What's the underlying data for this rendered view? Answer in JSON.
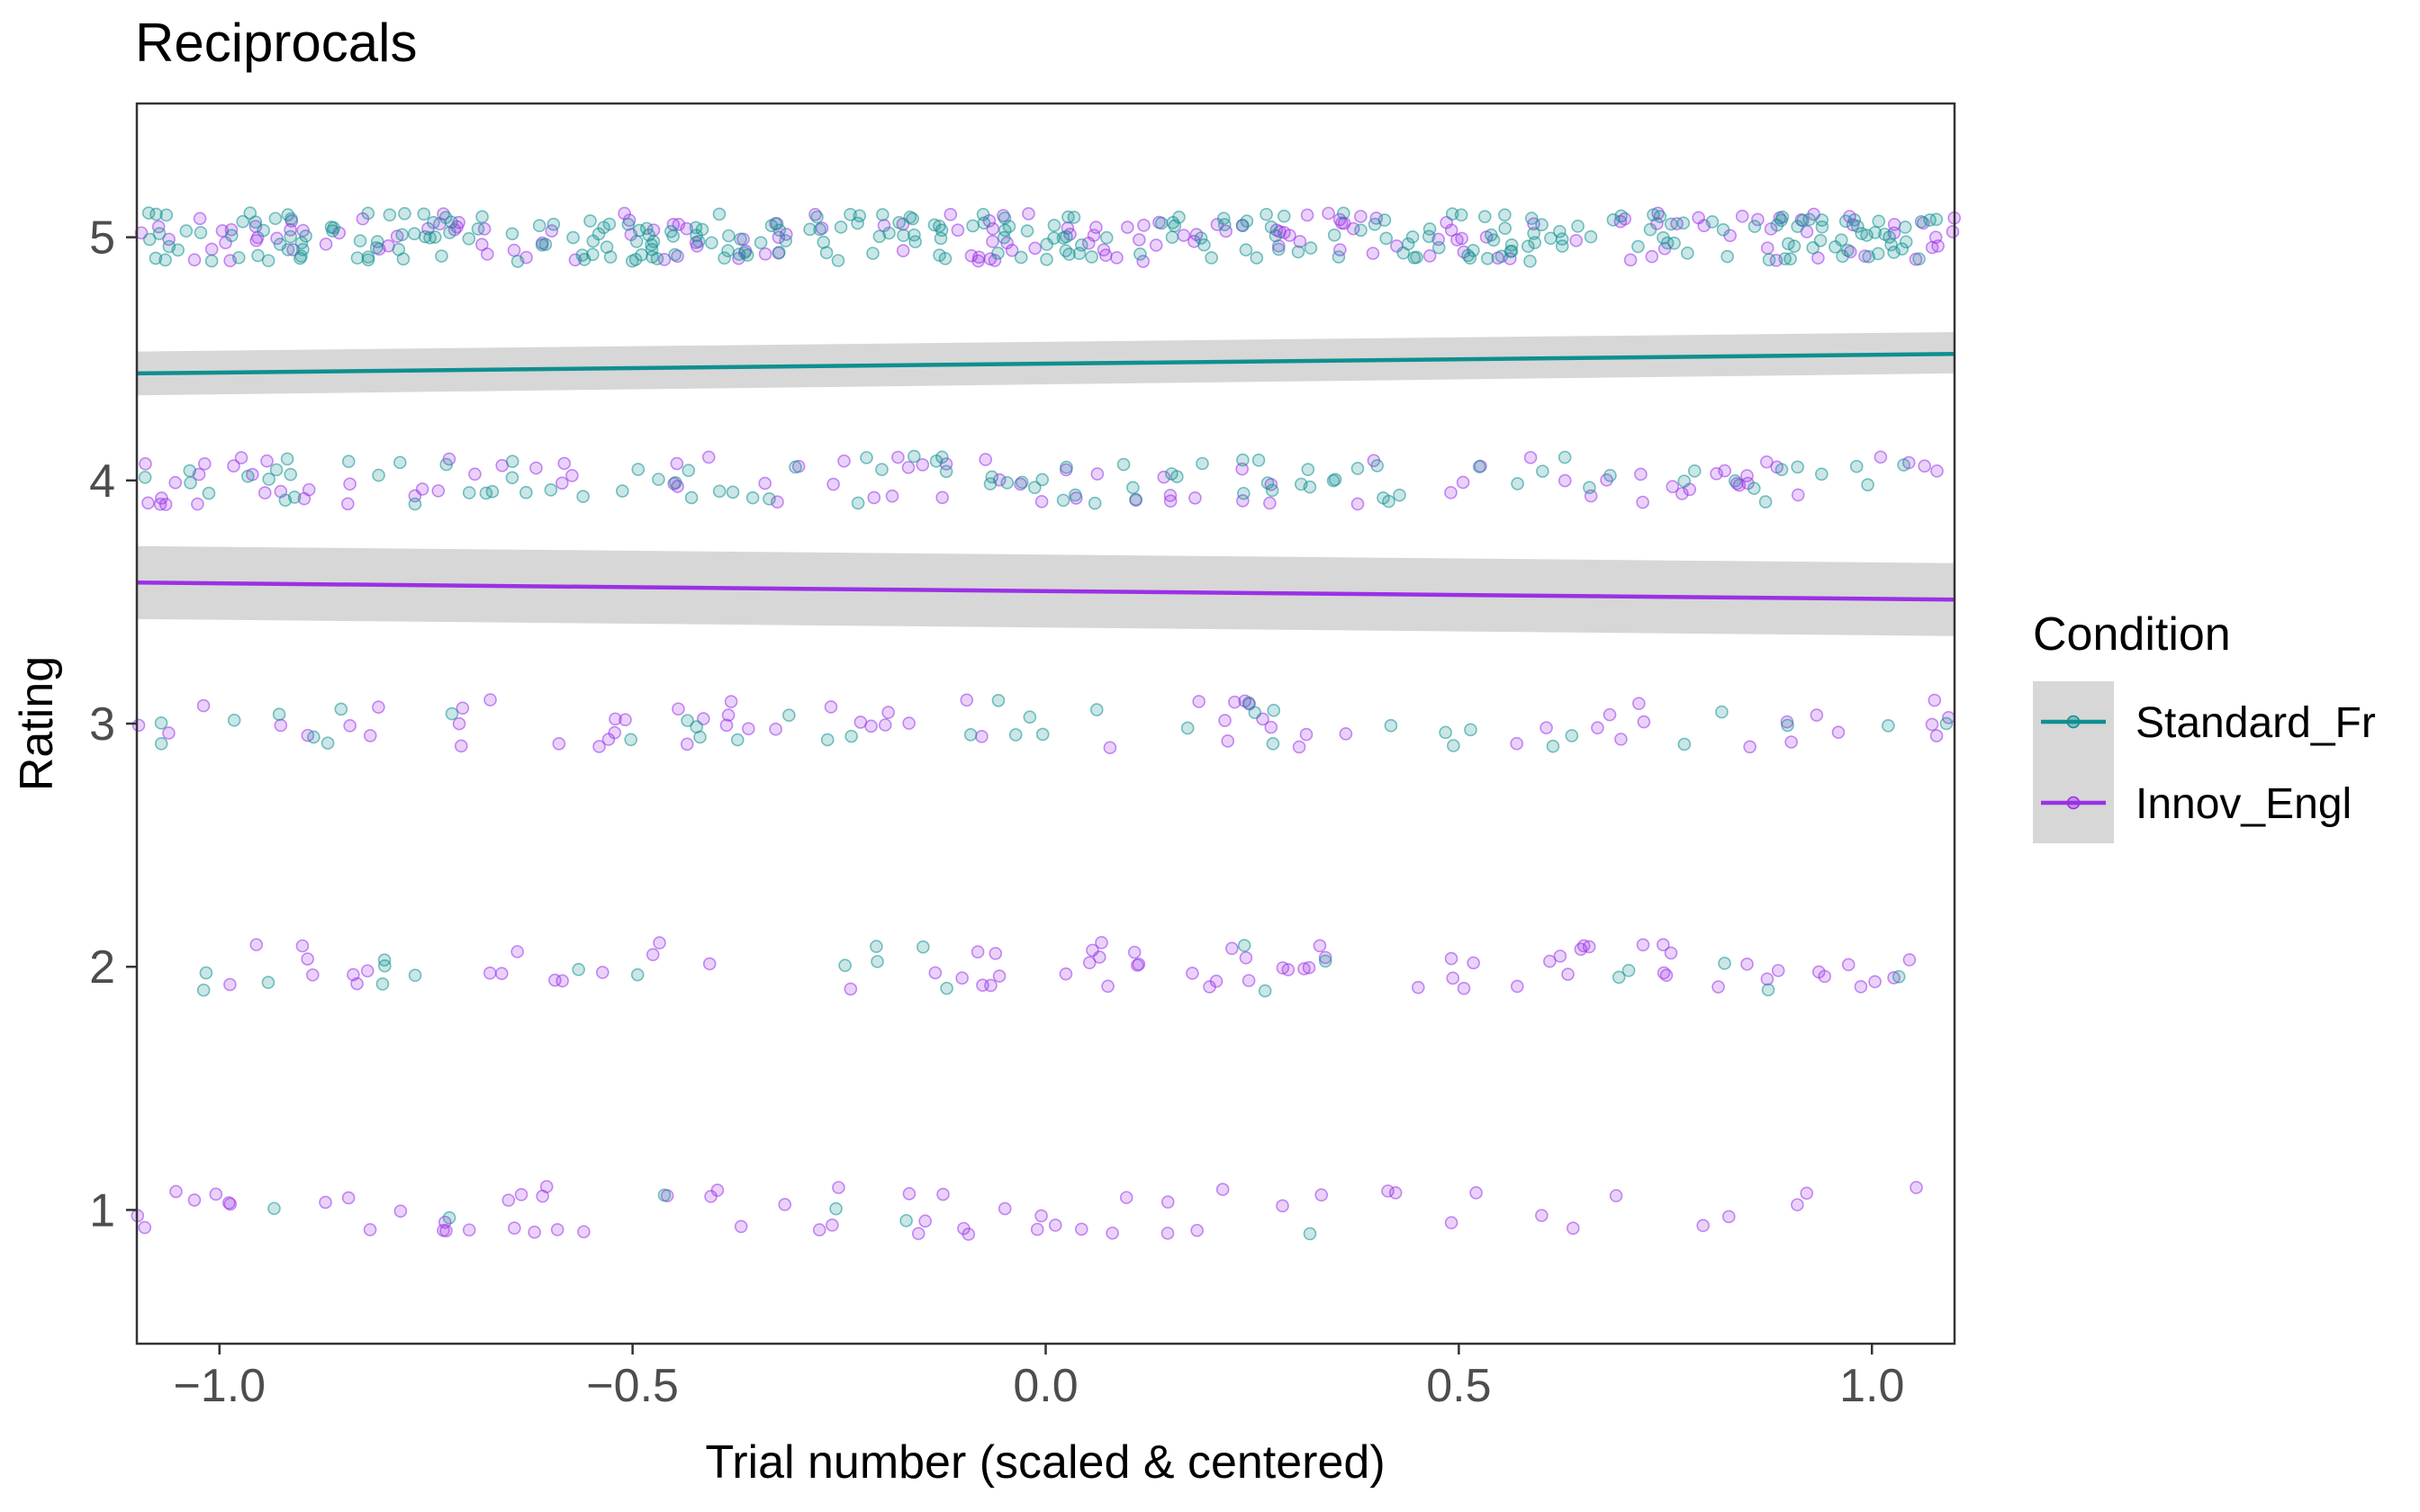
{
  "chart_data": {
    "type": "scatter",
    "title": "Reciprocals",
    "xlabel": "Trial number (scaled & centered)",
    "ylabel": "Rating",
    "xlim": [
      -1.1,
      1.1
    ],
    "ylim": [
      0.45,
      5.55
    ],
    "x_ticks": [
      -1.0,
      -0.5,
      0.0,
      0.5,
      1.0
    ],
    "x_tick_labels": [
      "−1.0",
      "−0.5",
      "0.0",
      "0.5",
      "1.0"
    ],
    "y_ticks": [
      1,
      2,
      3,
      4,
      5
    ],
    "y_tick_labels": [
      "1",
      "2",
      "3",
      "4",
      "5"
    ],
    "grid": false,
    "legend": {
      "title": "Condition",
      "placement": "right",
      "entries": [
        "Standard_Fr",
        "Innov_Engl"
      ]
    },
    "colors": {
      "Standard_Fr": "#0f8f8f",
      "Innov_Engl": "#9b30e6",
      "ribbon": "#bdbdbd"
    },
    "series": [
      {
        "name": "Standard_Fr",
        "color": "#0f8f8f",
        "trend": {
          "x": [
            -1.1,
            1.1
          ],
          "y": [
            4.44,
            4.52
          ]
        },
        "ribbon": {
          "x": [
            -1.1,
            1.1
          ],
          "lower": [
            4.35,
            4.44
          ],
          "upper": [
            4.53,
            4.61
          ]
        },
        "counts": {
          "1": 6,
          "2": 22,
          "3": 38,
          "4": 90,
          "5": 280
        }
      },
      {
        "name": "Innov_Engl",
        "color": "#9b30e6",
        "trend": {
          "x": [
            -1.1,
            1.1
          ],
          "y": [
            3.58,
            3.51
          ]
        },
        "ribbon": {
          "x": [
            -1.1,
            1.1
          ],
          "lower": [
            3.43,
            3.36
          ],
          "upper": [
            3.73,
            3.66
          ]
        },
        "counts": {
          "1": 62,
          "2": 74,
          "3": 62,
          "4": 88,
          "5": 160
        }
      }
    ]
  }
}
